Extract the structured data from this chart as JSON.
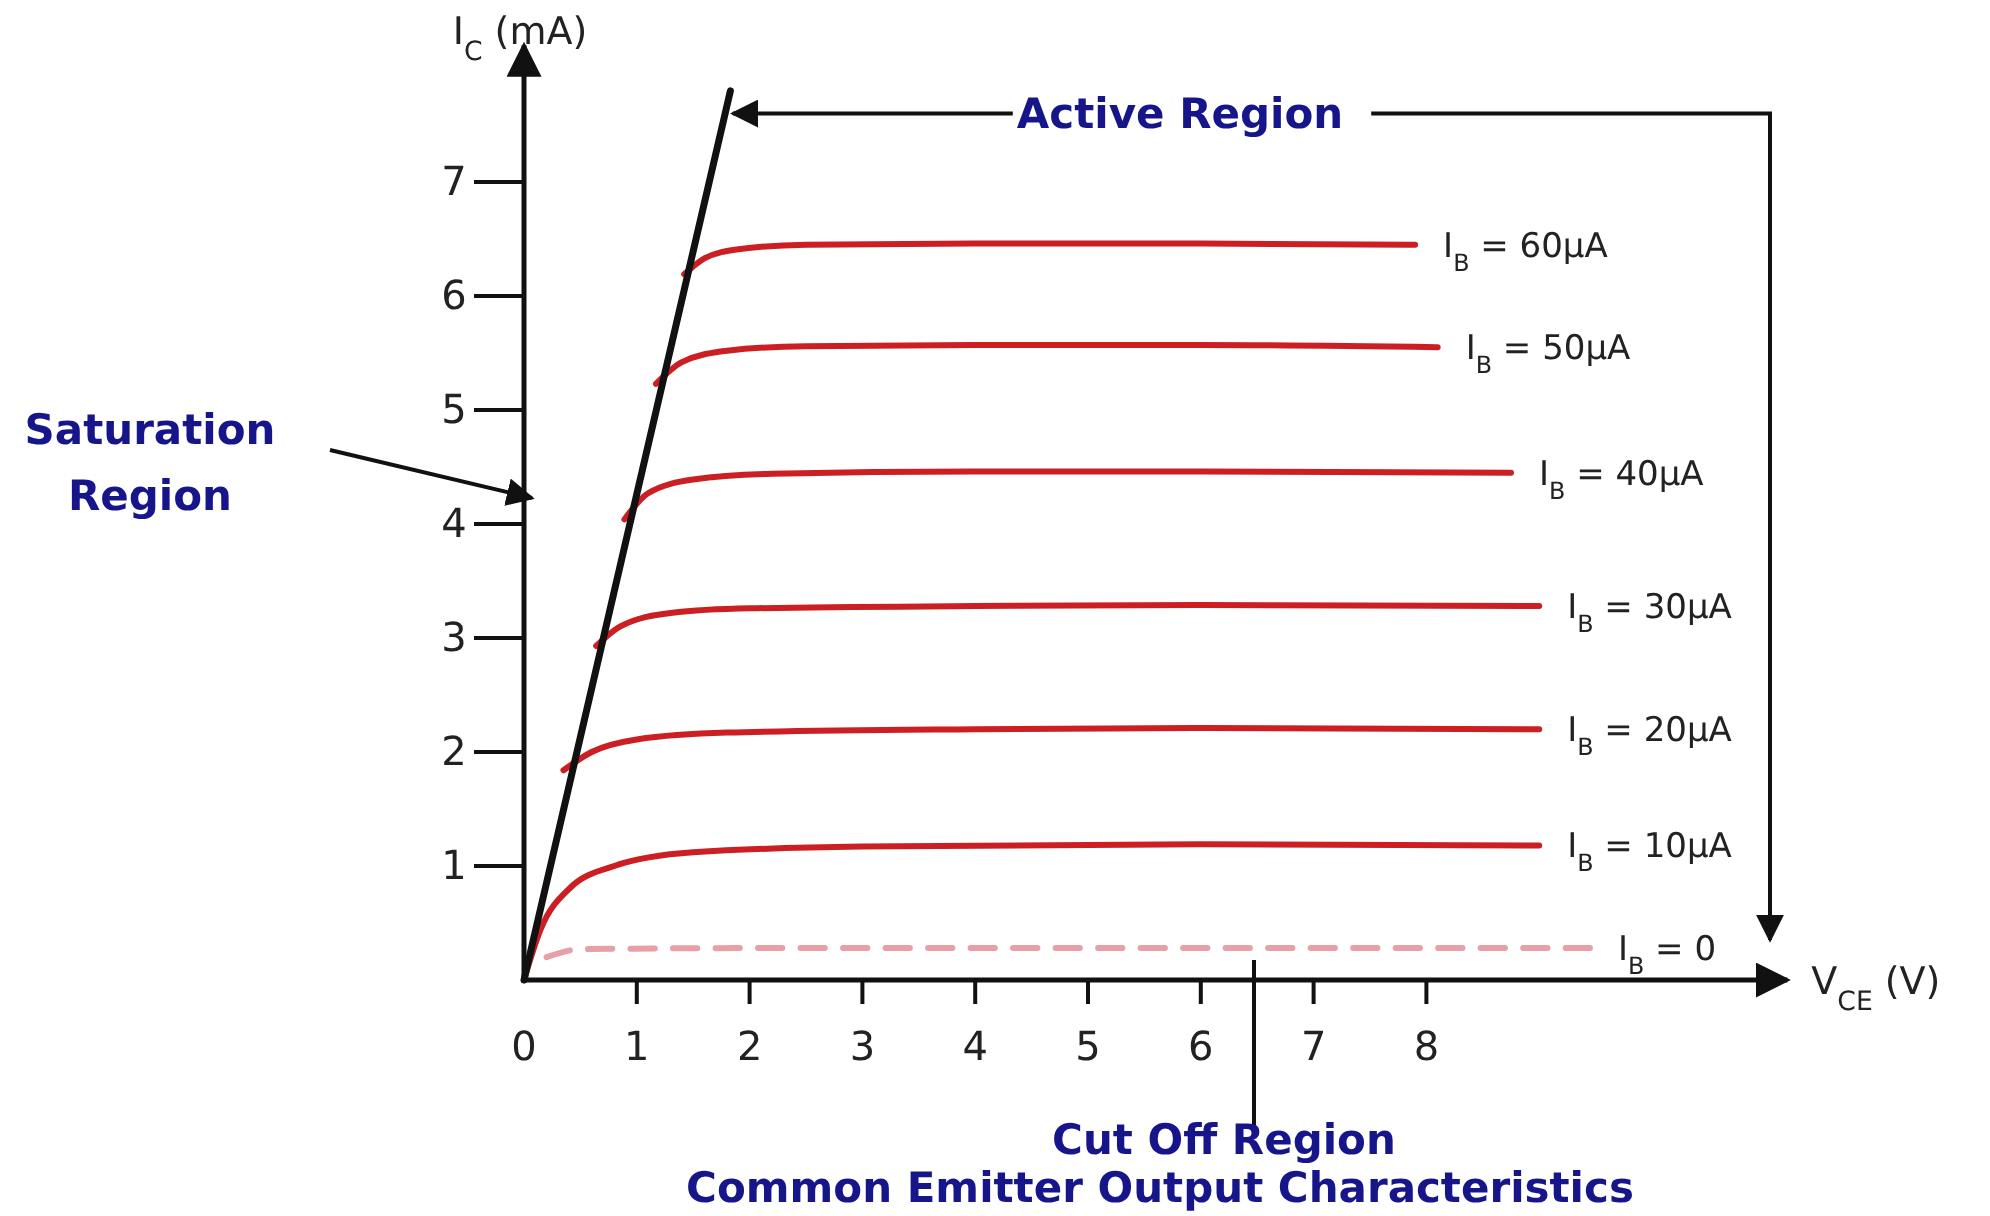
{
  "chart_data": {
    "type": "line",
    "title": "Common Emitter Output Characteristics",
    "xlabel": "V$_{CE}$ (V)",
    "ylabel": "I$_{C}$ (mA)",
    "xlim": [
      0,
      11.2
    ],
    "ylim": [
      0,
      8.2
    ],
    "xticks": [
      0,
      1,
      2,
      3,
      4,
      5,
      6,
      7,
      8
    ],
    "yticks": [
      1,
      2,
      3,
      4,
      5,
      6,
      7
    ],
    "annotations": [
      {
        "text": "Active Region",
        "x": 1.78,
        "y": 7.6
      },
      "Saturation Region",
      "Cut Off Region"
    ],
    "series": [
      {
        "name": "I$_{B}$ = 60μA",
        "color": "#cc1f24",
        "x": [
          1.42,
          1.6,
          1.9,
          2.5,
          4,
          6,
          7.9
        ],
        "values": [
          6.19,
          6.33,
          6.41,
          6.45,
          6.46,
          6.46,
          6.45
        ]
      },
      {
        "name": "I$_{B}$ = 50μA",
        "color": "#cc1f24",
        "x": [
          1.17,
          1.4,
          1.8,
          2.5,
          4,
          6,
          8.1
        ],
        "values": [
          5.23,
          5.42,
          5.52,
          5.56,
          5.57,
          5.57,
          5.55
        ]
      },
      {
        "name": "I$_{B}$ = 40μA",
        "color": "#cc1f24",
        "x": [
          0.89,
          1.1,
          1.5,
          2.2,
          4,
          6,
          8.75
        ],
        "values": [
          4.04,
          4.27,
          4.39,
          4.44,
          4.46,
          4.46,
          4.45
        ]
      },
      {
        "name": "I$_{B}$ = 30μA",
        "color": "#cc1f24",
        "x": [
          0.64,
          0.85,
          1.3,
          2,
          4,
          6,
          9
        ],
        "values": [
          2.93,
          3.1,
          3.22,
          3.26,
          3.28,
          3.29,
          3.28
        ]
      },
      {
        "name": "I$_{B}$ = 20μA",
        "color": "#cc1f24",
        "x": [
          0.35,
          0.6,
          1.0,
          1.8,
          4,
          6,
          9
        ],
        "values": [
          1.84,
          2.0,
          2.11,
          2.17,
          2.2,
          2.21,
          2.2
        ]
      },
      {
        "name": "I$_{B}$ = 10μA",
        "color": "#cc1f24",
        "x": [
          0,
          0.15,
          0.4,
          0.8,
          1.5,
          3,
          6,
          9
        ],
        "values": [
          0,
          0.45,
          0.8,
          1.0,
          1.12,
          1.17,
          1.19,
          1.18
        ]
      },
      {
        "name": "I$_{B}$ = 0",
        "color": "#e8a0a8",
        "line_style": "dashed",
        "x": [
          0.2,
          0.5,
          2,
          9.45
        ],
        "values": [
          0.2,
          0.27,
          0.28,
          0.28
        ]
      },
      {
        "color": "#111111",
        "x": [
          0,
          1.83
        ],
        "values": [
          0,
          7.8
        ]
      }
    ]
  }
}
